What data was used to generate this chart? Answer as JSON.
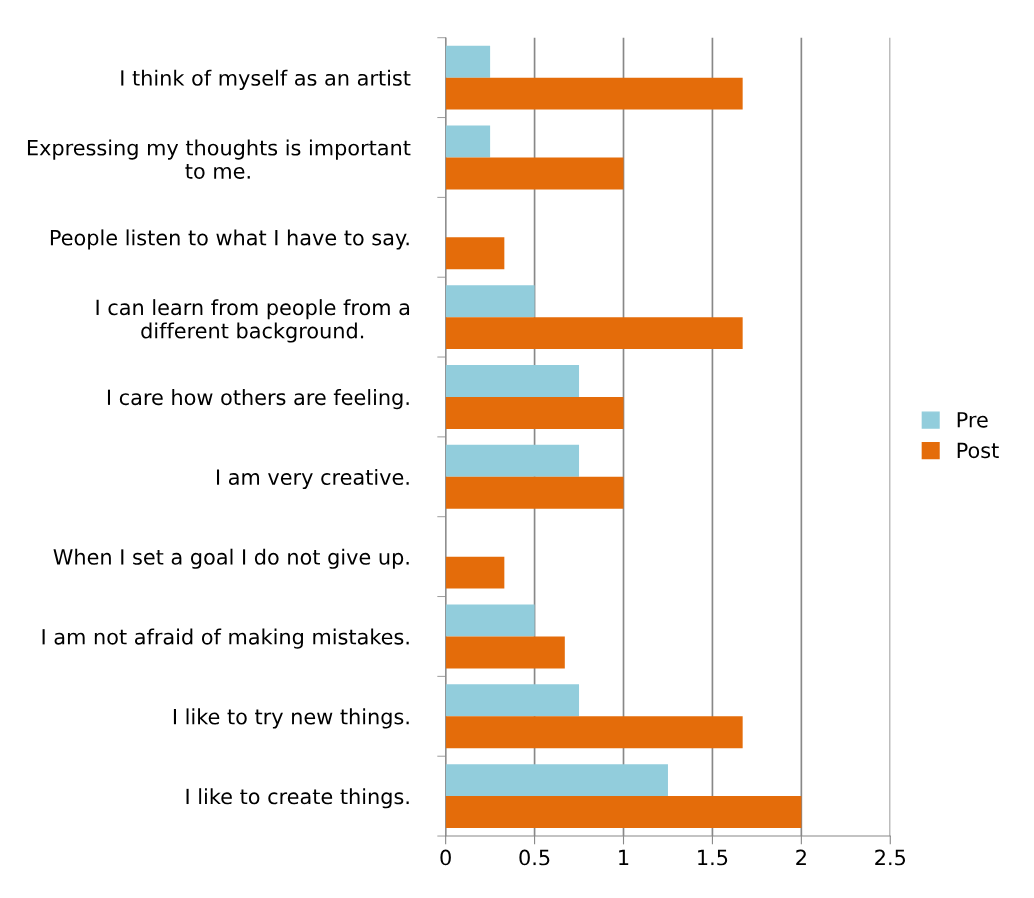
{
  "chart_data": {
    "type": "bar",
    "orientation": "horizontal",
    "categories": [
      "I think of myself as an artist",
      "Expressing my thoughts is important to me.",
      "People listen to what I have to say.",
      "I can learn from people from a different background.",
      "I care how others are feeling.",
      "I am very creative.",
      "When I set a goal I do not give up.",
      "I am not afraid of making mistakes.",
      "I like to try new things.",
      "I like to create things."
    ],
    "series": [
      {
        "name": "Pre",
        "color": "#92cddc",
        "values": [
          0.25,
          0.25,
          0,
          0.5,
          0.75,
          0.75,
          0,
          0.5,
          0.75,
          1.25
        ]
      },
      {
        "name": "Post",
        "color": "#e46c0a",
        "values": [
          1.67,
          1,
          0.33,
          1.67,
          1,
          1,
          0.33,
          0.67,
          1.67,
          2
        ]
      }
    ],
    "xlim": [
      0,
      2.5
    ],
    "xticks": [
      0,
      0.5,
      1,
      1.5,
      2,
      2.5
    ],
    "grid": "x",
    "legend": "right"
  }
}
